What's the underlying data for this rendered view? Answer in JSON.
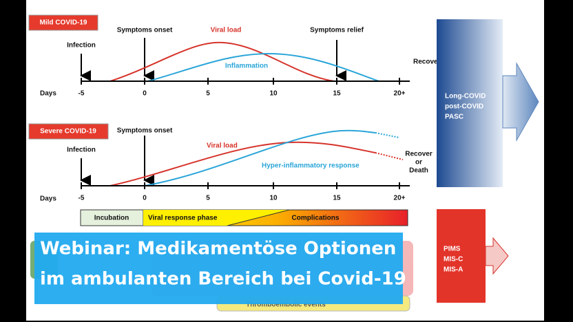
{
  "mild": {
    "label": "Mild COVID-19",
    "symptoms_onset": "Symptoms onset",
    "viral_load": "Viral load",
    "symptoms_relief": "Symptoms relief",
    "infection": "Infection",
    "inflammation": "Inflammation",
    "recovery": "Recovery",
    "days": "Days",
    "ticks": [
      "-5",
      "0",
      "5",
      "10",
      "15",
      "20+"
    ]
  },
  "severe": {
    "label": "Severe COVID-19",
    "symptoms_onset": "Symptoms onset",
    "viral_load": "Viral load",
    "infection": "Infection",
    "hyper": "Hyper-inflammatory response",
    "outcome": [
      "Recover",
      "or",
      "Death"
    ],
    "days": "Days",
    "ticks": [
      "-5",
      "0",
      "5",
      "10",
      "15",
      "20+"
    ]
  },
  "phases": [
    "Incubation",
    "Viral response phase",
    "Complications"
  ],
  "long_covid": [
    "Long-COVID",
    "post-COVID",
    "PASC"
  ],
  "pims": [
    "PIMS",
    "MIS-C",
    "MIS-A"
  ],
  "bottom": {
    "events": "Thromboembolic events"
  },
  "overlay": [
    "Webinar: Medikamentöse Optionen",
    "im ambulanten Bereich bei Covid-19"
  ]
}
